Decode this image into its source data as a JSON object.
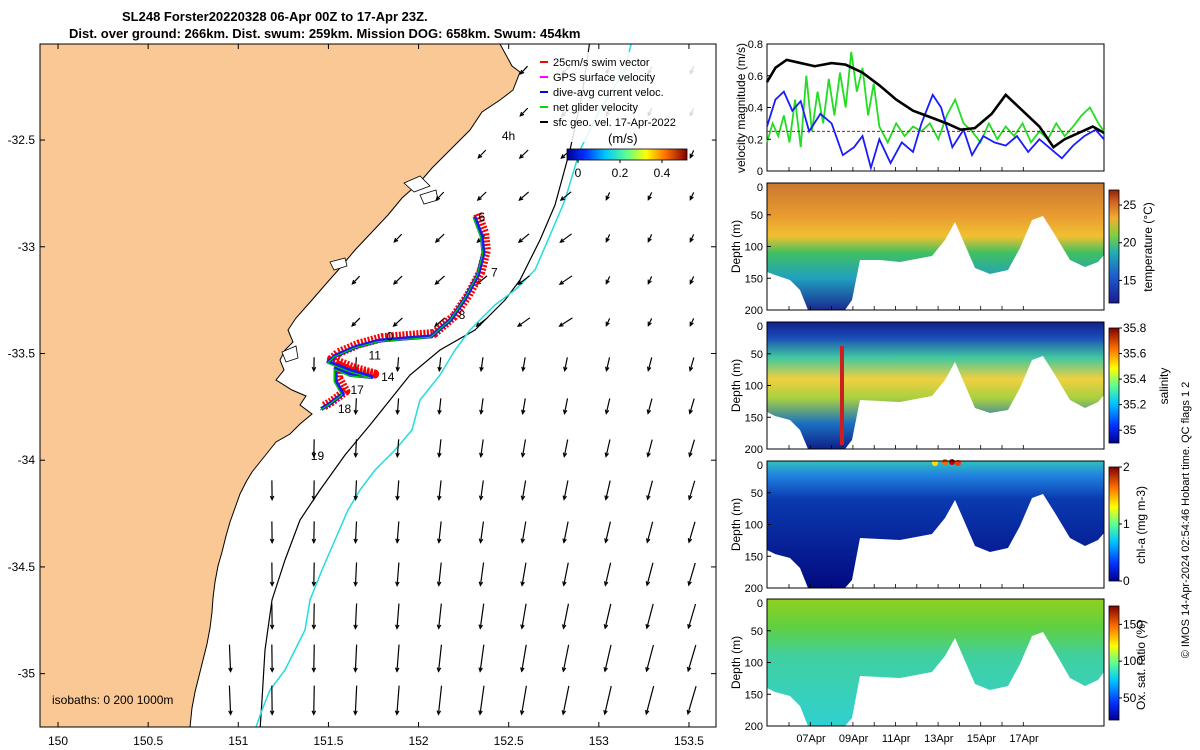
{
  "title": {
    "line1": "SL248 Forster20220328 06-Apr 00Z to 17-Apr 23Z.",
    "line2": "Dist. over ground: 266km. Dist. swum: 259km. Mission DOG: 658km. Swum: 454km"
  },
  "colors": {
    "land": "#f9c894",
    "track_red": "#ff0000",
    "track_blue": "#0000ee",
    "track_green": "#00dd00",
    "gps_magenta": "#ff00ff",
    "isobath_cyan": "#22dddd"
  },
  "copyright": "© IMOS 14-Apr-2024 02:54:46 Hobart time. QC flags 1  2",
  "chart_data": [
    {
      "type": "line",
      "panel": "map",
      "x_ticks": [
        "150",
        "150.5",
        "151",
        "151.5",
        "152",
        "152.5",
        "153",
        "153.5"
      ],
      "y_ticks": [
        "-32.5",
        "-33",
        "-33.5",
        "-34",
        "-34.5",
        "-35"
      ],
      "xlim": [
        149.9,
        153.65
      ],
      "ylim": [
        -35.25,
        -32.05
      ],
      "legend": [
        "25cm/s swim vector",
        "GPS surface velocity",
        "dive-avg current veloc.",
        "net glider velocity",
        "sfc geo. vel. 17-Apr-2022"
      ],
      "colorbar": {
        "unit": "(m/s)",
        "ticks": [
          "0",
          "0.2",
          "0.4"
        ],
        "range": [
          0,
          0.5
        ]
      },
      "isobaths_label": "isobaths: 0   200  1000m",
      "day_labels": [
        {
          "text": "4h",
          "lon": 152.44,
          "lat": -32.48
        },
        {
          "text": "6",
          "lon": 152.31,
          "lat": -32.86
        },
        {
          "text": "7",
          "lon": 152.38,
          "lat": -33.12
        },
        {
          "text": "8",
          "lon": 152.2,
          "lat": -33.32
        },
        {
          "text": "0",
          "lon": 151.8,
          "lat": -33.42
        },
        {
          "text": "11",
          "lon": 151.7,
          "lat": -33.51
        },
        {
          "text": "14",
          "lon": 151.77,
          "lat": -33.61
        },
        {
          "text": "17",
          "lon": 151.6,
          "lat": -33.67
        },
        {
          "text": "18",
          "lon": 151.53,
          "lat": -33.76
        },
        {
          "text": "19",
          "lon": 151.38,
          "lat": -33.98
        }
      ],
      "track": [
        [
          152.31,
          -32.86
        ],
        [
          152.35,
          -32.95
        ],
        [
          152.36,
          -33.03
        ],
        [
          152.33,
          -33.13
        ],
        [
          152.26,
          -33.24
        ],
        [
          152.18,
          -33.34
        ],
        [
          152.07,
          -33.42
        ],
        [
          151.92,
          -33.43
        ],
        [
          151.78,
          -33.44
        ],
        [
          151.65,
          -33.47
        ],
        [
          151.54,
          -33.51
        ],
        [
          151.5,
          -33.54
        ],
        [
          151.62,
          -33.58
        ],
        [
          151.74,
          -33.61
        ],
        [
          151.62,
          -33.6
        ],
        [
          151.54,
          -33.57
        ],
        [
          151.54,
          -33.63
        ],
        [
          151.58,
          -33.69
        ],
        [
          151.5,
          -33.74
        ],
        [
          151.46,
          -33.76
        ]
      ]
    },
    {
      "type": "line",
      "panel": "velocity",
      "ylabel": "velocity magnitude (m/s)",
      "ylim": [
        0,
        0.8
      ],
      "y_ticks": [
        "0",
        "0.2",
        "0.4",
        "0.6",
        "0.8"
      ],
      "xlim": [
        0,
        12
      ],
      "series": [
        {
          "color": "#000000",
          "x": [
            0,
            0.3,
            0.7,
            1.2,
            1.7,
            2.3,
            2.8,
            3.4,
            4.0,
            4.6,
            5.2,
            5.8,
            6.4,
            6.9,
            7.4,
            8.0,
            8.5,
            9.1,
            9.7,
            10.2,
            10.6,
            11.1,
            11.6,
            12
          ],
          "values": [
            0.56,
            0.65,
            0.7,
            0.68,
            0.66,
            0.68,
            0.67,
            0.62,
            0.54,
            0.45,
            0.38,
            0.34,
            0.3,
            0.26,
            0.27,
            0.36,
            0.48,
            0.38,
            0.28,
            0.15,
            0.2,
            0.24,
            0.28,
            0.24
          ]
        },
        {
          "color": "#1a1aff",
          "x": [
            0,
            0.3,
            0.6,
            0.9,
            1.2,
            1.5,
            1.9,
            2.3,
            2.7,
            3.1,
            3.4,
            3.7,
            4.0,
            4.4,
            4.8,
            5.2,
            5.5,
            5.9,
            6.2,
            6.6,
            7.0,
            7.3,
            7.7,
            8.1,
            8.5,
            8.9,
            9.3,
            9.7,
            10.1,
            10.5,
            10.9,
            11.3,
            11.7,
            12
          ],
          "values": [
            0.28,
            0.45,
            0.5,
            0.38,
            0.44,
            0.25,
            0.36,
            0.3,
            0.1,
            0.15,
            0.22,
            0.02,
            0.2,
            0.05,
            0.18,
            0.12,
            0.3,
            0.48,
            0.4,
            0.15,
            0.26,
            0.1,
            0.22,
            0.18,
            0.16,
            0.22,
            0.12,
            0.2,
            0.14,
            0.08,
            0.16,
            0.22,
            0.26,
            0.2
          ]
        },
        {
          "color": "#22dd22",
          "x": [
            0,
            0.2,
            0.4,
            0.6,
            0.8,
            1.0,
            1.2,
            1.4,
            1.6,
            1.8,
            2.0,
            2.2,
            2.4,
            2.6,
            2.8,
            3.0,
            3.2,
            3.4,
            3.6,
            3.8,
            4.0,
            4.3,
            4.6,
            4.9,
            5.2,
            5.5,
            5.8,
            6.1,
            6.4,
            6.7,
            7.0,
            7.3,
            7.6,
            7.9,
            8.2,
            8.5,
            8.8,
            9.1,
            9.4,
            9.7,
            10.0,
            10.3,
            10.6,
            10.9,
            11.2,
            11.5,
            11.8,
            12
          ],
          "values": [
            0.18,
            0.3,
            0.22,
            0.35,
            0.18,
            0.45,
            0.15,
            0.6,
            0.25,
            0.5,
            0.3,
            0.58,
            0.35,
            0.62,
            0.4,
            0.75,
            0.5,
            0.65,
            0.35,
            0.55,
            0.28,
            0.18,
            0.3,
            0.22,
            0.28,
            0.25,
            0.3,
            0.2,
            0.35,
            0.45,
            0.3,
            0.25,
            0.18,
            0.3,
            0.2,
            0.28,
            0.22,
            0.3,
            0.18,
            0.25,
            0.2,
            0.3,
            0.22,
            0.28,
            0.35,
            0.4,
            0.3,
            0.25
          ]
        },
        {
          "color": "#dd0000",
          "x": [
            0,
            12
          ],
          "values": [
            0.25,
            0.25
          ]
        }
      ]
    },
    {
      "type": "heatmap",
      "panel": "temperature",
      "ylabel": "Depth (m)",
      "ylim": [
        200,
        0
      ],
      "y_ticks": [
        "0",
        "50",
        "100",
        "150",
        "200"
      ],
      "colorbar": {
        "label": "temperature (°C)",
        "ticks": [
          "15",
          "20",
          "25"
        ],
        "range": [
          12,
          27
        ]
      }
    },
    {
      "type": "heatmap",
      "panel": "salinity",
      "ylabel": "Depth (m)",
      "ylim": [
        200,
        0
      ],
      "y_ticks": [
        "0",
        "50",
        "100",
        "150",
        "200"
      ],
      "colorbar": {
        "label": "salinity",
        "ticks": [
          "35",
          "35.2",
          "35.4",
          "35.6",
          "35.8"
        ],
        "range": [
          34.9,
          35.8
        ]
      }
    },
    {
      "type": "heatmap",
      "panel": "chla",
      "ylabel": "Depth (m)",
      "ylim": [
        200,
        0
      ],
      "y_ticks": [
        "0",
        "50",
        "100",
        "150",
        "200"
      ],
      "colorbar": {
        "label": "chl-a (mg m-3)",
        "ticks": [
          "0",
          "1",
          "2"
        ],
        "range": [
          0,
          2
        ]
      }
    },
    {
      "type": "heatmap",
      "panel": "oxygen",
      "ylabel": "Depth (m)",
      "ylim": [
        200,
        0
      ],
      "y_ticks": [
        "0",
        "50",
        "100",
        "150",
        "200"
      ],
      "x_ticks": [
        "07Apr",
        "09Apr",
        "11Apr",
        "13Apr",
        "15Apr",
        "17Apr"
      ],
      "colorbar": {
        "label": "Ox. sat. ratio (%)",
        "ticks": [
          "50",
          "100",
          "150"
        ],
        "range": [
          20,
          175
        ]
      }
    }
  ]
}
